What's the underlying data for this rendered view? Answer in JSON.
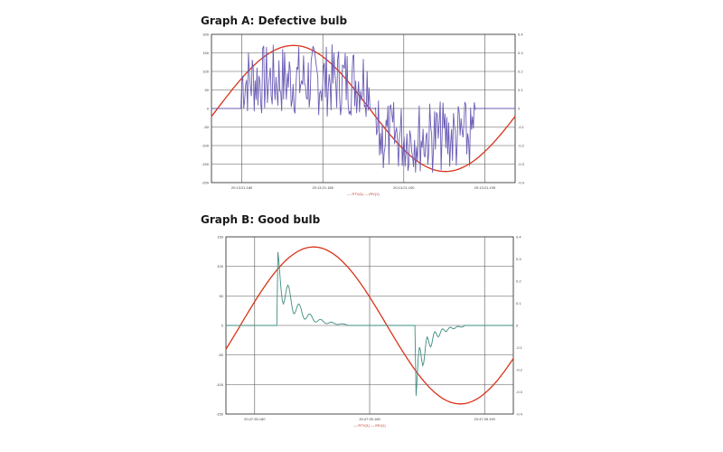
{
  "charts": [
    {
      "id": "a",
      "chart_data": {
        "type": "line",
        "title": "Graph A: Defective bulb",
        "left_ticks": [
          "200",
          "150",
          "100",
          "50",
          "0",
          "-50",
          "-100",
          "-150",
          "-200"
        ],
        "right_ticks": [
          "0.4",
          "0.3",
          "0.2",
          "0.1",
          "0",
          "-0.1",
          "-0.2",
          "-0.3",
          "-0.4"
        ],
        "x_ticks": [
          "20:13:21.180",
          "20:13:21.185",
          "20:13:21.190",
          "20:13:21.195"
        ],
        "ylim_left": [
          -200,
          200
        ],
        "ylim_right": [
          -0.4,
          0.4
        ],
        "grid": true,
        "legend_text": "— RTV(1) — iRV(1)",
        "series": [
          {
            "color": "#d9331a",
            "shape": "sine",
            "amplitude": 170,
            "phase": 0.02,
            "periods": 1.0
          },
          {
            "color": "#6b5cb5",
            "shape": "noisy",
            "seed": 7,
            "segments": [
              [
                0.1,
                0.52,
                1
              ],
              [
                0.54,
                0.87,
                -1
              ]
            ],
            "max": 0.38
          }
        ]
      }
    },
    {
      "id": "b",
      "chart_data": {
        "type": "line",
        "title": "Graph B: Good bulb",
        "left_ticks": [
          "150",
          "100",
          "50",
          "0",
          "-50",
          "-100",
          "-150"
        ],
        "right_ticks": [
          "0.4",
          "0.3",
          "0.2",
          "0.1",
          "0",
          "-0.1",
          "-0.2",
          "-0.3",
          "-0.4"
        ],
        "x_ticks": [
          "20:47:35.180",
          "20:47:35.185",
          "20:47:35.190"
        ],
        "ylim_left": [
          -175,
          175
        ],
        "ylim_right": [
          -0.45,
          0.45
        ],
        "grid": true,
        "legend_text": "— RTV(1) — iRV(1)",
        "series": [
          {
            "color": "#d9331a",
            "shape": "sine",
            "amplitude": 155,
            "phase": 0.05,
            "periods": 0.98
          },
          {
            "color": "#3e8c80",
            "shape": "spike",
            "segments": [
              [
                0.18,
                0.42,
                1
              ],
              [
                0.66,
                0.83,
                -1
              ]
            ],
            "max": 0.42
          }
        ]
      }
    }
  ]
}
